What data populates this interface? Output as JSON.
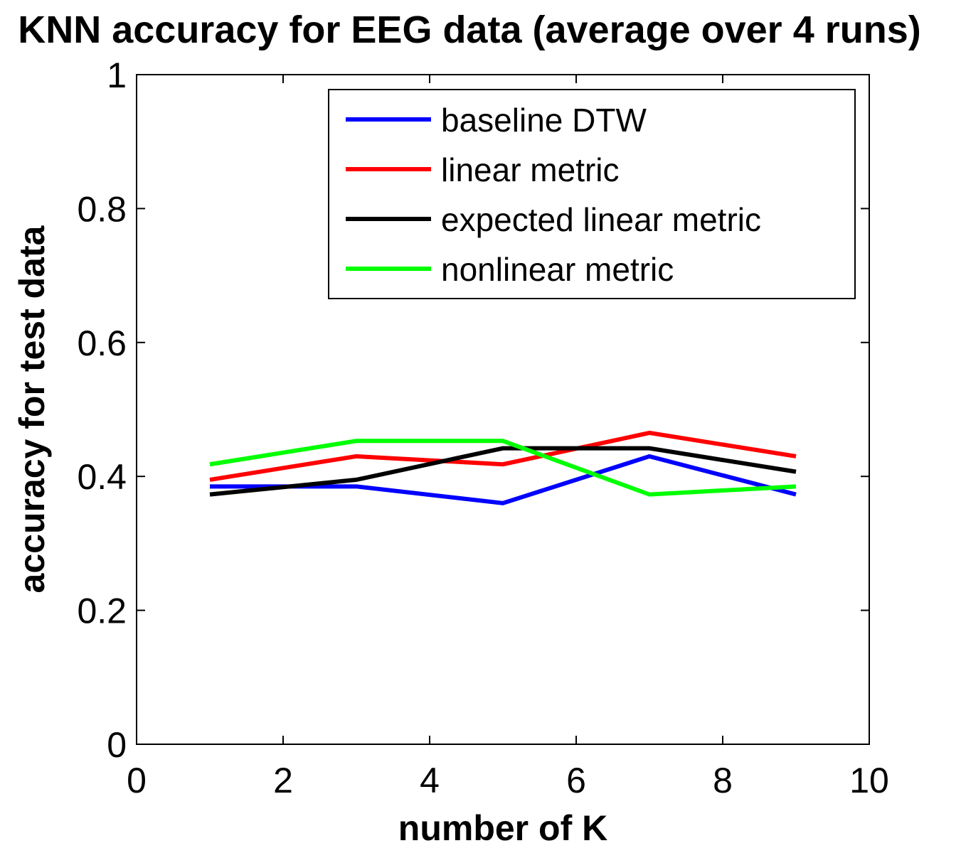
{
  "chart_data": {
    "type": "line",
    "title": "KNN accuracy for EEG data (average over 4 runs)",
    "xlabel": "number of K",
    "ylabel": "accuracy for test data",
    "xlim": [
      0,
      10
    ],
    "ylim": [
      0,
      1
    ],
    "xticks": [
      0,
      2,
      4,
      6,
      8,
      10
    ],
    "yticks": [
      0,
      0.2,
      0.4,
      0.6,
      0.8,
      1
    ],
    "ytick_labels": [
      "0",
      "0.2",
      "0.4",
      "0.6",
      "0.8",
      "1"
    ],
    "legend_position": "top-right",
    "grid": false,
    "x": [
      1,
      3,
      5,
      7,
      9
    ],
    "series": [
      {
        "name": "baseline DTW",
        "color": "#0000ff",
        "values": [
          0.385,
          0.385,
          0.36,
          0.43,
          0.373
        ]
      },
      {
        "name": "linear metric",
        "color": "#ff0000",
        "values": [
          0.395,
          0.43,
          0.418,
          0.465,
          0.43
        ]
      },
      {
        "name": "expected linear metric",
        "color": "#000000",
        "values": [
          0.373,
          0.395,
          0.442,
          0.442,
          0.407
        ]
      },
      {
        "name": "nonlinear metric",
        "color": "#00ff00",
        "values": [
          0.418,
          0.453,
          0.453,
          0.373,
          0.385
        ]
      }
    ]
  }
}
